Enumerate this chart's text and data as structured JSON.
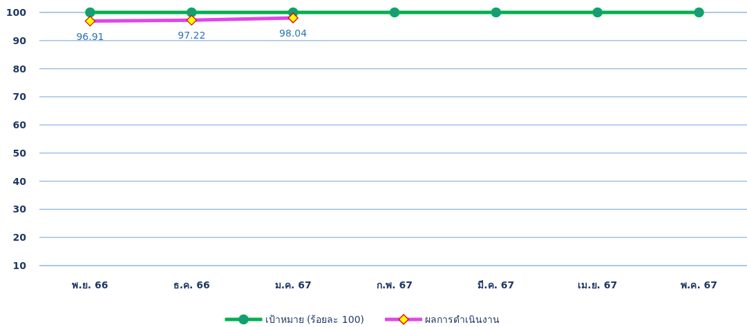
{
  "chart_data": {
    "type": "line",
    "categories": [
      "พ.ย. 66",
      "ธ.ค. 66",
      "ม.ค. 67",
      "ก.พ. 67",
      "มี.ค. 67",
      "เม.ย. 67",
      "พ.ค. 67"
    ],
    "series": [
      {
        "name": "เป้าหมาย (ร้อยละ 100)",
        "color": "#00b050",
        "values": [
          100,
          100,
          100,
          100,
          100,
          100,
          100
        ],
        "marker": "circle"
      },
      {
        "name": "ผลการดำเนินงาน",
        "color": "#e046e8",
        "values": [
          96.91,
          97.22,
          98.04,
          null,
          null,
          null,
          null
        ],
        "marker": "diamond",
        "value_labels": [
          "96.91",
          "97.22",
          "98.04",
          null,
          null,
          null,
          null
        ]
      }
    ],
    "ylim": [
      10,
      100
    ],
    "yticks": [
      10,
      20,
      30,
      40,
      50,
      60,
      70,
      80,
      90,
      100
    ],
    "grid": "y",
    "legend": "bottom"
  }
}
